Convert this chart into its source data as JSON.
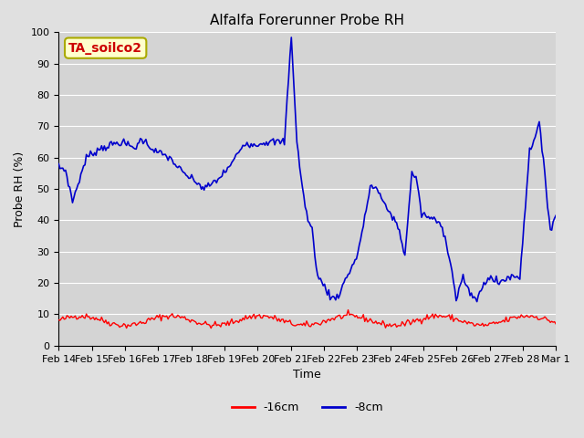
{
  "title": "Alfalfa Forerunner Probe RH",
  "xlabel": "Time",
  "ylabel": "Probe RH (%)",
  "ylim": [
    0,
    100
  ],
  "background_color": "#e0e0e0",
  "plot_bg_color": "#d4d4d4",
  "grid_color": "#ffffff",
  "annotation_text": "TA_soilco2",
  "annotation_bg": "#ffffcc",
  "annotation_border": "#aaaa00",
  "annotation_text_color": "#cc0000",
  "line1_color": "#ff0000",
  "line2_color": "#0000cc",
  "line1_label": "-16cm",
  "line2_label": "-8cm",
  "x_tick_labels": [
    "Feb 14",
    "Feb 15",
    "Feb 16",
    "Feb 17",
    "Feb 18",
    "Feb 19",
    "Feb 20",
    "Feb 21",
    "Feb 22",
    "Feb 23",
    "Feb 24",
    "Feb 25",
    "Feb 26",
    "Feb 27",
    "Feb 28",
    "Mar 1"
  ],
  "num_points": 360
}
